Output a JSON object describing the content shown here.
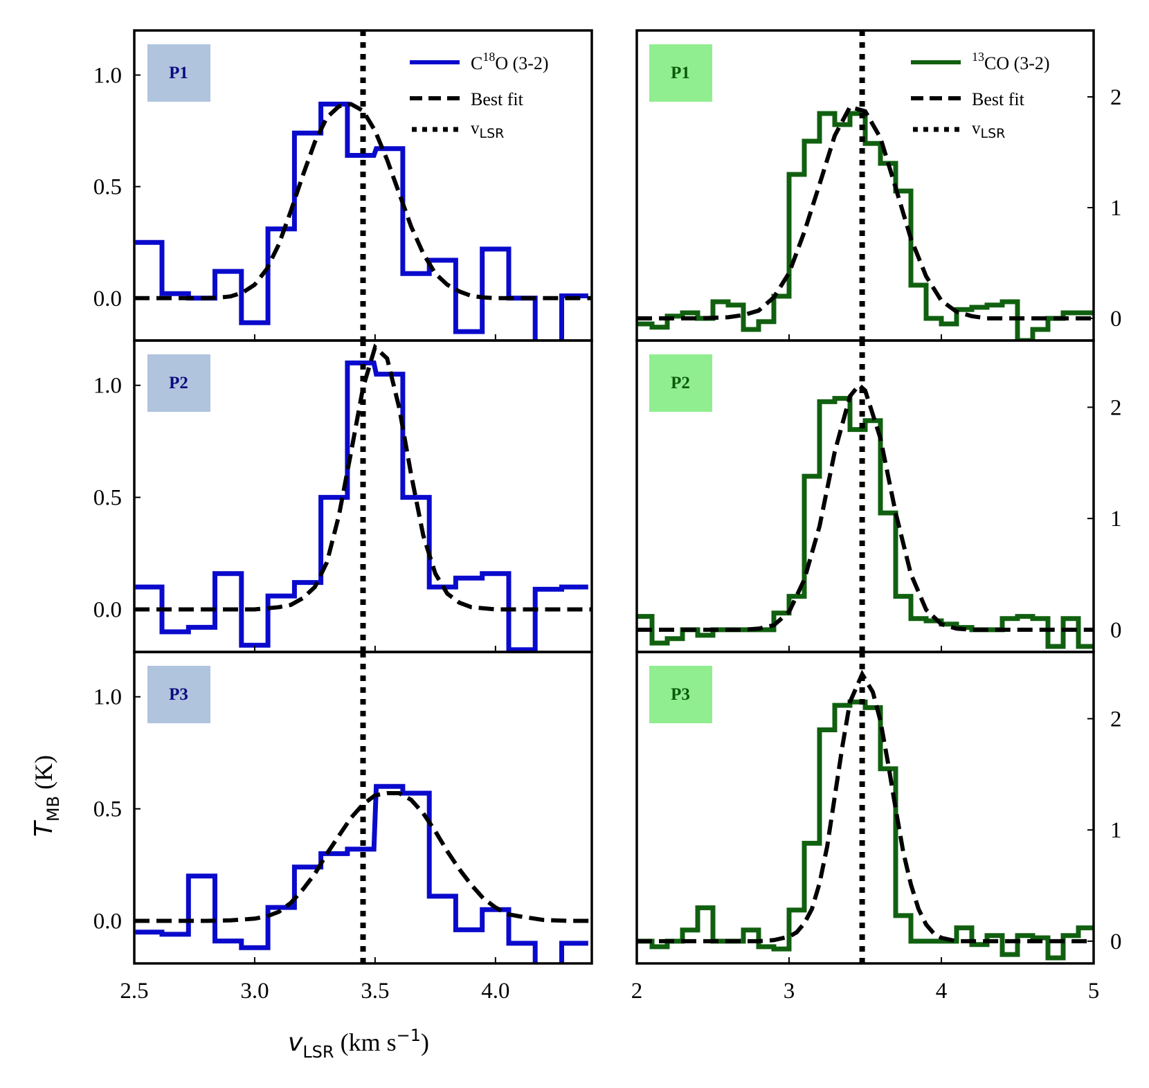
{
  "figure": {
    "ylabel_main": "T",
    "ylabel_sub": "MB",
    "ylabel_unit": " (K)",
    "xlabel_main": "v",
    "xlabel_sub": "LSR",
    "xlabel_unit_pre": " (km s",
    "xlabel_unit_sup": "−1",
    "xlabel_unit_post": ")"
  },
  "colors": {
    "c18o": "#0a0acc",
    "c13o": "#106010",
    "fit": "#000000",
    "badge_left": "#b0c4de",
    "badge_left_text": "#0a0a80",
    "badge_right": "#90ee90",
    "badge_right_text": "#0a5a0a"
  },
  "legend": {
    "left": {
      "line_prefix": "C",
      "line_sup": "18",
      "line_suffix": "O (3-2)",
      "fit": "Best fit",
      "vlsr_main": "v",
      "vlsr_sub": "LSR"
    },
    "right": {
      "line_prefix": "",
      "line_sup": "13",
      "line_suffix": "CO (3-2)",
      "fit": "Best fit",
      "vlsr_main": "v",
      "vlsr_sub": "LSR"
    }
  },
  "chart_data": [
    {
      "type": "line",
      "panel": "P1",
      "column": "left",
      "xlim": [
        2.5,
        4.4
      ],
      "ylim": [
        -0.19,
        1.2
      ],
      "xticks": [
        2.5,
        3.0,
        3.5,
        4.0
      ],
      "xtick_labels": [
        "2.5",
        "3.0",
        "3.5",
        "4.0"
      ],
      "yticks": [
        0.0,
        0.5,
        1.0
      ],
      "ytick_labels": [
        "0.0",
        "0.5",
        "1.0"
      ],
      "vlsr": 3.45,
      "series": [
        {
          "name": "C18O (3-2)",
          "drawstyle": "steps-mid",
          "x": [
            2.56,
            2.67,
            2.78,
            2.89,
            3.0,
            3.11,
            3.22,
            3.33,
            3.44,
            3.56,
            3.67,
            3.78,
            3.89,
            4.0,
            4.11,
            4.22,
            4.33
          ],
          "values": [
            0.25,
            0.02,
            0.0,
            0.12,
            -0.11,
            0.31,
            0.74,
            0.87,
            0.64,
            0.67,
            0.11,
            0.17,
            -0.15,
            0.22,
            0.0,
            -0.33,
            0.01
          ]
        },
        {
          "name": "Best fit",
          "type": "gaussian",
          "amplitude": 0.87,
          "center": 3.4,
          "sigma": 0.13,
          "x": [
            2.5,
            2.55,
            2.6,
            2.65,
            2.7,
            2.75,
            2.8,
            2.85,
            2.9,
            2.95,
            3.0,
            3.05,
            3.1,
            3.15,
            3.2,
            3.25,
            3.3,
            3.35,
            3.4,
            3.45,
            3.5,
            3.55,
            3.6,
            3.65,
            3.7,
            3.75,
            3.8,
            3.85,
            3.9,
            3.95,
            4.0,
            4.05,
            4.1,
            4.15,
            4.2,
            4.25,
            4.3,
            4.35,
            4.4
          ],
          "values": [
            0.0,
            0.0,
            0.0,
            0.0,
            0.0,
            0.0,
            0.0,
            0.002,
            0.008,
            0.025,
            0.06,
            0.13,
            0.24,
            0.39,
            0.55,
            0.7,
            0.81,
            0.86,
            0.87,
            0.84,
            0.75,
            0.62,
            0.47,
            0.32,
            0.2,
            0.11,
            0.06,
            0.03,
            0.01,
            0.003,
            0.0,
            0.0,
            0.0,
            0.0,
            0.0,
            0.0,
            0.0,
            0.0,
            0.0
          ]
        }
      ]
    },
    {
      "type": "line",
      "panel": "P2",
      "column": "left",
      "xlim": [
        2.5,
        4.4
      ],
      "ylim": [
        -0.19,
        1.2
      ],
      "xticks": [
        2.5,
        3.0,
        3.5,
        4.0
      ],
      "xtick_labels": [
        "2.5",
        "3.0",
        "3.5",
        "4.0"
      ],
      "yticks": [
        0.0,
        0.5,
        1.0
      ],
      "ytick_labels": [
        "0.0",
        "0.5",
        "1.0"
      ],
      "vlsr": 3.45,
      "series": [
        {
          "name": "C18O (3-2)",
          "drawstyle": "steps-mid",
          "x": [
            2.56,
            2.67,
            2.78,
            2.89,
            3.0,
            3.11,
            3.22,
            3.33,
            3.44,
            3.56,
            3.67,
            3.78,
            3.89,
            4.0,
            4.11,
            4.22,
            4.33
          ],
          "values": [
            0.1,
            -0.1,
            -0.08,
            0.16,
            -0.16,
            0.06,
            0.12,
            0.5,
            1.1,
            1.05,
            0.5,
            0.1,
            0.14,
            0.16,
            -0.18,
            0.09,
            0.1
          ],
          "clip_last_step": true
        },
        {
          "name": "Best fit",
          "type": "gaussian",
          "amplitude": 1.17,
          "center": 3.51,
          "sigma": 0.1,
          "x": [
            2.5,
            2.6,
            2.7,
            2.8,
            2.9,
            3.0,
            3.1,
            3.15,
            3.2,
            3.25,
            3.3,
            3.35,
            3.4,
            3.45,
            3.5,
            3.55,
            3.6,
            3.65,
            3.7,
            3.75,
            3.8,
            3.85,
            3.9,
            4.0,
            4.1,
            4.2,
            4.3,
            4.4
          ],
          "values": [
            0.0,
            0.0,
            0.0,
            0.0,
            0.0,
            0.0,
            0.01,
            0.02,
            0.05,
            0.1,
            0.21,
            0.42,
            0.7,
            0.99,
            1.17,
            1.12,
            0.9,
            0.6,
            0.33,
            0.16,
            0.07,
            0.03,
            0.01,
            0.0,
            0.0,
            0.0,
            0.0,
            0.0
          ]
        }
      ]
    },
    {
      "type": "line",
      "panel": "P3",
      "column": "left",
      "xlim": [
        2.5,
        4.4
      ],
      "ylim": [
        -0.19,
        1.2
      ],
      "xticks": [
        2.5,
        3.0,
        3.5,
        4.0
      ],
      "xtick_labels": [
        "2.5",
        "3.0",
        "3.5",
        "4.0"
      ],
      "yticks": [
        0.0,
        0.5,
        1.0
      ],
      "ytick_labels": [
        "0.0",
        "0.5",
        "1.0"
      ],
      "vlsr": 3.45,
      "series": [
        {
          "name": "C18O (3-2)",
          "drawstyle": "steps-mid",
          "x": [
            2.56,
            2.67,
            2.78,
            2.89,
            3.0,
            3.11,
            3.22,
            3.33,
            3.44,
            3.56,
            3.67,
            3.78,
            3.89,
            4.0,
            4.11,
            4.22,
            4.33
          ],
          "values": [
            -0.05,
            -0.06,
            0.2,
            -0.09,
            -0.12,
            0.06,
            0.24,
            0.3,
            0.32,
            0.6,
            0.57,
            0.11,
            -0.04,
            0.05,
            -0.1,
            -0.3,
            -0.1
          ],
          "clip_last_step": true
        },
        {
          "name": "Best fit",
          "type": "gaussian",
          "amplitude": 0.57,
          "center": 3.57,
          "sigma": 0.18,
          "x": [
            2.5,
            2.6,
            2.7,
            2.8,
            2.9,
            3.0,
            3.05,
            3.1,
            3.15,
            3.2,
            3.25,
            3.3,
            3.35,
            3.4,
            3.45,
            3.5,
            3.55,
            3.6,
            3.65,
            3.7,
            3.75,
            3.8,
            3.85,
            3.9,
            3.95,
            4.0,
            4.05,
            4.1,
            4.2,
            4.3,
            4.4
          ],
          "values": [
            0.0,
            0.0,
            0.0,
            0.0,
            0.002,
            0.01,
            0.02,
            0.04,
            0.08,
            0.14,
            0.21,
            0.3,
            0.38,
            0.46,
            0.52,
            0.56,
            0.57,
            0.57,
            0.54,
            0.48,
            0.4,
            0.31,
            0.23,
            0.16,
            0.1,
            0.06,
            0.03,
            0.02,
            0.004,
            0.0,
            0.0
          ]
        }
      ]
    },
    {
      "type": "line",
      "panel": "P1",
      "column": "right",
      "xlim": [
        2.0,
        5.0
      ],
      "ylim": [
        -0.2,
        2.6
      ],
      "xticks": [
        2,
        3,
        4,
        5
      ],
      "xtick_labels": [
        "2",
        "3",
        "4",
        "5"
      ],
      "yticks": [
        0,
        1,
        2
      ],
      "ytick_labels": [
        "0",
        "1",
        "2"
      ],
      "vlsr": 3.48,
      "series": [
        {
          "name": "13CO (3-2)",
          "drawstyle": "steps-mid",
          "x": [
            2.05,
            2.15,
            2.25,
            2.35,
            2.45,
            2.55,
            2.65,
            2.75,
            2.85,
            2.95,
            3.05,
            3.15,
            3.25,
            3.35,
            3.45,
            3.55,
            3.65,
            3.75,
            3.85,
            3.95,
            4.05,
            4.15,
            4.25,
            4.35,
            4.45,
            4.55,
            4.65,
            4.75,
            4.85,
            4.95
          ],
          "values": [
            -0.05,
            -0.08,
            0.02,
            0.05,
            0.0,
            0.15,
            0.12,
            -0.1,
            -0.03,
            0.2,
            1.3,
            1.6,
            1.85,
            1.75,
            1.85,
            1.58,
            1.4,
            1.15,
            0.3,
            0.0,
            -0.05,
            0.08,
            0.1,
            0.12,
            0.15,
            -0.2,
            -0.1,
            0.0,
            0.05,
            0.05
          ]
        },
        {
          "name": "Best fit",
          "type": "gaussian",
          "amplitude": 1.93,
          "center": 3.44,
          "sigma": 0.25,
          "x": [
            2.0,
            2.2,
            2.4,
            2.6,
            2.7,
            2.8,
            2.9,
            3.0,
            3.1,
            3.2,
            3.3,
            3.4,
            3.5,
            3.6,
            3.7,
            3.8,
            3.9,
            4.0,
            4.1,
            4.2,
            4.3,
            4.4,
            4.6,
            4.8,
            5.0
          ],
          "values": [
            0.0,
            0.0,
            0.0,
            0.01,
            0.03,
            0.07,
            0.19,
            0.41,
            0.78,
            1.21,
            1.65,
            1.91,
            1.87,
            1.63,
            1.18,
            0.72,
            0.38,
            0.16,
            0.06,
            0.02,
            0.0,
            0.0,
            0.0,
            0.0,
            0.0
          ]
        }
      ]
    },
    {
      "type": "line",
      "panel": "P2",
      "column": "right",
      "xlim": [
        2.0,
        5.0
      ],
      "ylim": [
        -0.2,
        2.6
      ],
      "xticks": [
        2,
        3,
        4,
        5
      ],
      "xtick_labels": [
        "2",
        "3",
        "4",
        "5"
      ],
      "yticks": [
        0,
        1,
        2
      ],
      "ytick_labels": [
        "0",
        "1",
        "2"
      ],
      "vlsr": 3.48,
      "series": [
        {
          "name": "13CO (3-2)",
          "drawstyle": "steps-mid",
          "x": [
            2.05,
            2.15,
            2.25,
            2.35,
            2.45,
            2.55,
            2.65,
            2.75,
            2.85,
            2.95,
            3.05,
            3.15,
            3.25,
            3.35,
            3.45,
            3.55,
            3.65,
            3.75,
            3.85,
            3.95,
            4.05,
            4.15,
            4.25,
            4.35,
            4.45,
            4.55,
            4.65,
            4.75,
            4.85,
            4.95
          ],
          "values": [
            0.12,
            -0.12,
            -0.08,
            0.0,
            -0.05,
            0.0,
            0.0,
            0.0,
            0.0,
            0.15,
            0.3,
            1.38,
            2.05,
            2.08,
            1.8,
            1.88,
            1.05,
            0.3,
            0.1,
            0.08,
            0.05,
            0.02,
            0.0,
            0.0,
            0.1,
            0.12,
            0.1,
            -0.15,
            0.1,
            -0.15
          ]
        },
        {
          "name": "Best fit",
          "type": "gaussian",
          "amplitude": 2.2,
          "center": 3.46,
          "sigma": 0.2,
          "x": [
            2.0,
            2.4,
            2.6,
            2.7,
            2.8,
            2.9,
            3.0,
            3.1,
            3.2,
            3.3,
            3.4,
            3.46,
            3.5,
            3.6,
            3.7,
            3.8,
            3.9,
            4.0,
            4.1,
            4.2,
            4.3,
            4.5,
            5.0
          ],
          "values": [
            0.0,
            0.0,
            0.0,
            0.0,
            0.01,
            0.04,
            0.16,
            0.45,
            0.93,
            1.6,
            2.1,
            2.2,
            2.15,
            1.72,
            1.05,
            0.5,
            0.18,
            0.05,
            0.01,
            0.0,
            0.0,
            0.0,
            0.0
          ]
        }
      ]
    },
    {
      "type": "line",
      "panel": "P3",
      "column": "right",
      "xlim": [
        2.0,
        5.0
      ],
      "ylim": [
        -0.2,
        2.6
      ],
      "xticks": [
        2,
        3,
        4,
        5
      ],
      "xtick_labels": [
        "2",
        "3",
        "4",
        "5"
      ],
      "yticks": [
        0,
        1,
        2
      ],
      "ytick_labels": [
        "0",
        "1",
        "2"
      ],
      "vlsr": 3.48,
      "series": [
        {
          "name": "13CO (3-2)",
          "drawstyle": "steps-mid",
          "x": [
            2.05,
            2.15,
            2.25,
            2.35,
            2.45,
            2.55,
            2.65,
            2.75,
            2.85,
            2.95,
            3.05,
            3.15,
            3.25,
            3.35,
            3.45,
            3.55,
            3.65,
            3.75,
            3.85,
            3.95,
            4.05,
            4.15,
            4.25,
            4.35,
            4.45,
            4.55,
            4.65,
            4.75,
            4.85,
            4.95
          ],
          "values": [
            0.0,
            -0.05,
            0.0,
            0.1,
            0.3,
            0.0,
            0.0,
            0.1,
            -0.05,
            -0.07,
            0.28,
            0.88,
            1.9,
            2.12,
            2.15,
            2.1,
            1.55,
            0.23,
            0.0,
            0.0,
            0.0,
            0.12,
            -0.03,
            0.05,
            -0.12,
            0.05,
            0.03,
            -0.15,
            0.05,
            0.12
          ]
        },
        {
          "name": "Best fit",
          "type": "gaussian",
          "amplitude": 2.4,
          "center": 3.48,
          "sigma": 0.16,
          "x": [
            2.0,
            2.5,
            2.7,
            2.8,
            2.9,
            3.0,
            3.05,
            3.1,
            3.15,
            3.2,
            3.25,
            3.3,
            3.35,
            3.4,
            3.48,
            3.55,
            3.6,
            3.65,
            3.7,
            3.75,
            3.8,
            3.85,
            3.9,
            3.95,
            4.0,
            4.1,
            4.2,
            4.4,
            5.0
          ],
          "values": [
            0.0,
            0.0,
            0.0,
            0.0,
            0.01,
            0.04,
            0.08,
            0.16,
            0.29,
            0.52,
            0.85,
            1.3,
            1.75,
            2.15,
            2.4,
            2.24,
            1.98,
            1.6,
            1.19,
            0.8,
            0.51,
            0.29,
            0.15,
            0.07,
            0.03,
            0.0,
            0.0,
            0.0,
            0.0
          ]
        }
      ]
    }
  ],
  "badges": {
    "left": [
      "P1",
      "P2",
      "P3"
    ],
    "right": [
      "P1",
      "P2",
      "P3"
    ]
  }
}
